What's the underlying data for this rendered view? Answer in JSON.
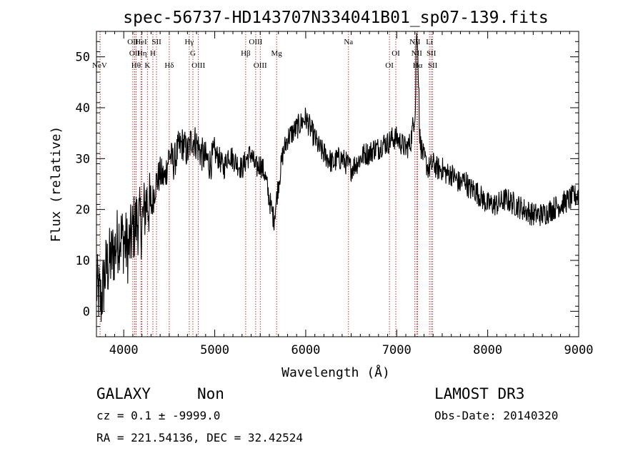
{
  "chart_data": {
    "type": "line",
    "title": "spec-56737-HD143707N334041B01_sp07-139.fits",
    "xlabel": "Wavelength (Å)",
    "ylabel": "Flux (relative)",
    "xlim": [
      3700,
      9000
    ],
    "ylim": [
      -5,
      55
    ],
    "x_ticks": [
      4000,
      5000,
      6000,
      7000,
      8000,
      9000
    ],
    "y_ticks": [
      0,
      10,
      20,
      30,
      40,
      50
    ],
    "x_tick_labels": [
      "4000",
      "5000",
      "6000",
      "7000",
      "8000",
      "9000"
    ],
    "y_tick_labels": [
      "0",
      "10",
      "20",
      "30",
      "40",
      "50"
    ],
    "grid": false,
    "color": "#000000",
    "line_marker_color": "#b22222",
    "spectrum": {
      "name": "flux",
      "x": [
        3700,
        3750,
        3800,
        3850,
        3900,
        3950,
        4000,
        4050,
        4100,
        4150,
        4200,
        4250,
        4300,
        4350,
        4400,
        4450,
        4500,
        4550,
        4600,
        4650,
        4700,
        4750,
        4800,
        4850,
        4900,
        4950,
        5000,
        5050,
        5100,
        5150,
        5200,
        5250,
        5300,
        5350,
        5400,
        5450,
        5500,
        5550,
        5600,
        5650,
        5700,
        5750,
        5800,
        5850,
        5900,
        5950,
        6000,
        6050,
        6100,
        6150,
        6200,
        6250,
        6300,
        6350,
        6400,
        6450,
        6500,
        6550,
        6600,
        6650,
        6700,
        6750,
        6800,
        6850,
        6900,
        6950,
        7000,
        7050,
        7100,
        7150,
        7200,
        7220,
        7240,
        7260,
        7300,
        7350,
        7400,
        7450,
        7500,
        7550,
        7600,
        7650,
        7700,
        7750,
        7800,
        7850,
        7900,
        7950,
        8000,
        8100,
        8200,
        8300,
        8400,
        8500,
        8600,
        8700,
        8800,
        8900,
        9000
      ],
      "y": [
        5,
        2,
        8,
        10,
        12,
        15,
        14,
        12,
        16,
        18,
        17,
        22,
        20,
        25,
        27,
        26,
        31,
        29,
        32,
        33,
        31,
        34,
        33,
        31,
        30,
        29,
        31,
        30,
        28,
        31,
        30,
        29,
        28,
        30,
        31,
        28,
        29,
        27,
        22,
        18,
        25,
        31,
        34,
        35,
        36,
        37,
        38,
        36,
        34,
        32,
        31,
        30,
        29,
        30,
        30,
        29,
        28,
        29,
        30,
        31,
        31,
        32,
        32,
        33,
        33,
        34,
        34,
        33,
        32,
        33,
        39,
        48,
        38,
        33,
        30,
        28,
        29,
        28,
        28,
        27,
        27,
        26,
        25,
        26,
        24,
        24,
        23,
        22,
        21,
        21,
        22,
        21,
        20,
        19,
        19,
        20,
        21,
        22,
        23
      ]
    },
    "emission_lines": [
      {
        "label": "NeV",
        "x": 3740,
        "row": 3
      },
      {
        "label": "OII",
        "x": 4100,
        "row": 0
      },
      {
        "label": "OII",
        "x": 4120,
        "row": 1
      },
      {
        "label": "Hθ",
        "x": 4135,
        "row": 2
      },
      {
        "label": "HeI",
        "x": 4190,
        "row": 0
      },
      {
        "label": "Hη",
        "x": 4200,
        "row": 1
      },
      {
        "label": "K",
        "x": 4260,
        "row": 2
      },
      {
        "label": "H",
        "x": 4320,
        "row": 1
      },
      {
        "label": "SII",
        "x": 4360,
        "row": 0
      },
      {
        "label": "Hδ",
        "x": 4500,
        "row": 2
      },
      {
        "label": "Hγ",
        "x": 4720,
        "row": 0
      },
      {
        "label": "G",
        "x": 4760,
        "row": 1
      },
      {
        "label": "OIII",
        "x": 4820,
        "row": 2
      },
      {
        "label": "Hβ",
        "x": 5340,
        "row": 1
      },
      {
        "label": "OIII",
        "x": 5450,
        "row": 0
      },
      {
        "label": "OIII",
        "x": 5500,
        "row": 2
      },
      {
        "label": "Mg",
        "x": 5680,
        "row": 1
      },
      {
        "label": "Na",
        "x": 6470,
        "row": 0
      },
      {
        "label": "OI",
        "x": 6920,
        "row": 2
      },
      {
        "label": "OI",
        "x": 6990,
        "row": 1
      },
      {
        "label": "NII",
        "x": 7200,
        "row": 0
      },
      {
        "label": "NII",
        "x": 7220,
        "row": 1
      },
      {
        "label": "Hα",
        "x": 7230,
        "row": 2
      },
      {
        "label": "Li",
        "x": 7360,
        "row": 0
      },
      {
        "label": "SII",
        "x": 7380,
        "row": 1
      },
      {
        "label": "SII",
        "x": 7395,
        "row": 2
      }
    ]
  },
  "annotations": {
    "object_class": "GALAXY",
    "subclass": "Non",
    "redshift_line": "cz = 0.1 ± -9999.0",
    "coords_line": "RA = 221.54136, DEC =  32.42524",
    "survey": "LAMOST DR3",
    "obs_date": "Obs-Date: 20140320"
  }
}
